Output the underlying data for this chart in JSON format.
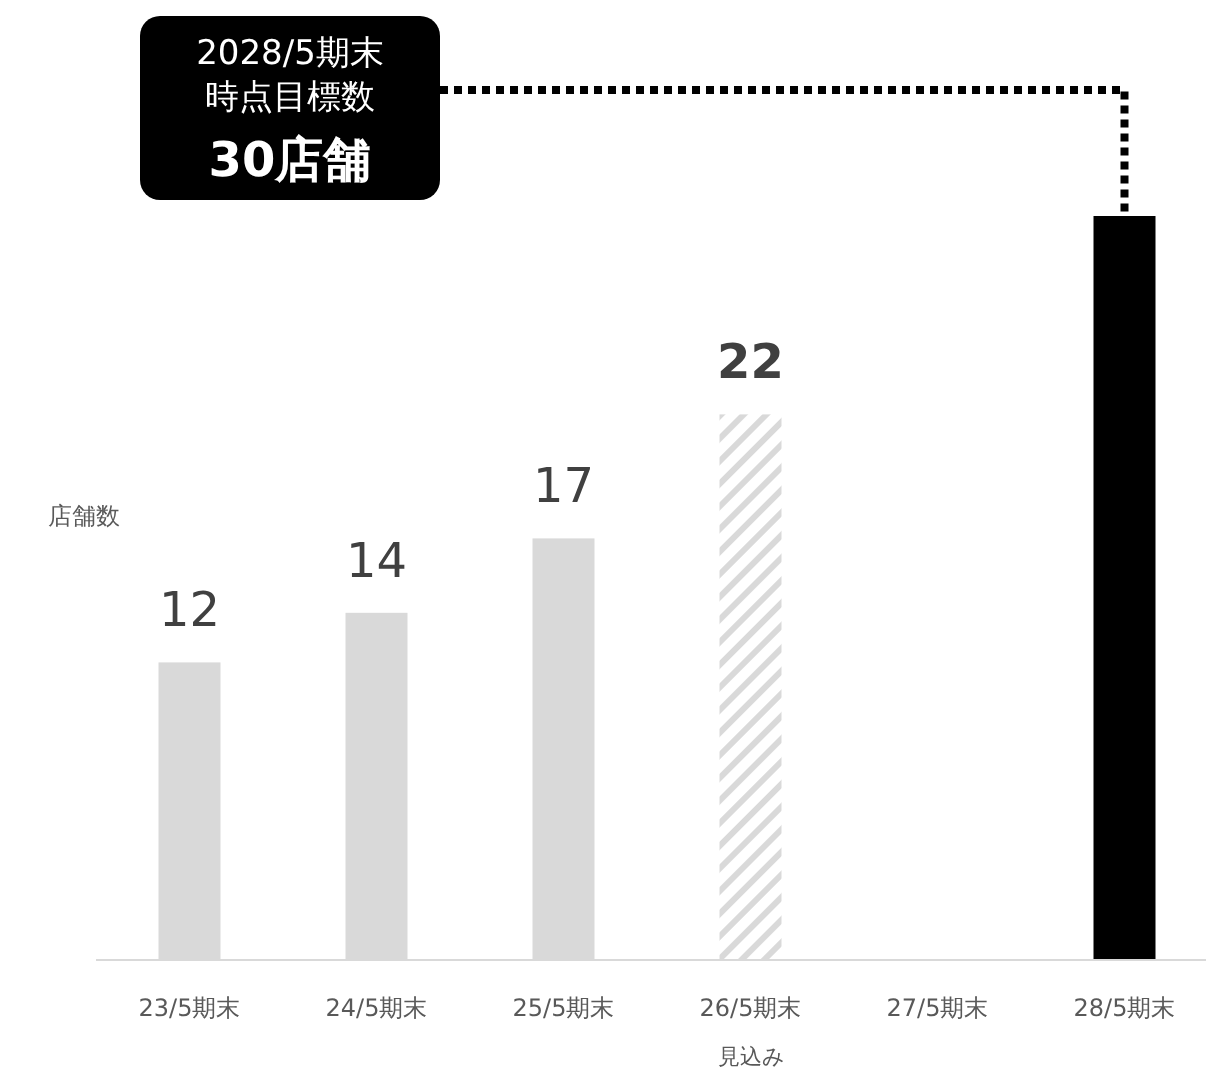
{
  "chart_data": {
    "type": "bar",
    "ylabel": "店舗数",
    "categories": [
      "23/5期末",
      "24/5期末",
      "25/5期末",
      "26/5期末",
      "27/5期末",
      "28/5期末"
    ],
    "values": [
      12,
      14,
      17,
      22,
      null,
      30
    ],
    "colors": [
      "#d9d9d9",
      "#d9d9d9",
      "#d9d9d9",
      "#d9d9d9",
      null,
      "#000000"
    ],
    "value_labels": [
      "12",
      "14",
      "17",
      "22",
      null,
      null
    ],
    "annotations": [
      "2028/5期末時点目標数",
      "30店舗",
      "見込み"
    ]
  }
}
